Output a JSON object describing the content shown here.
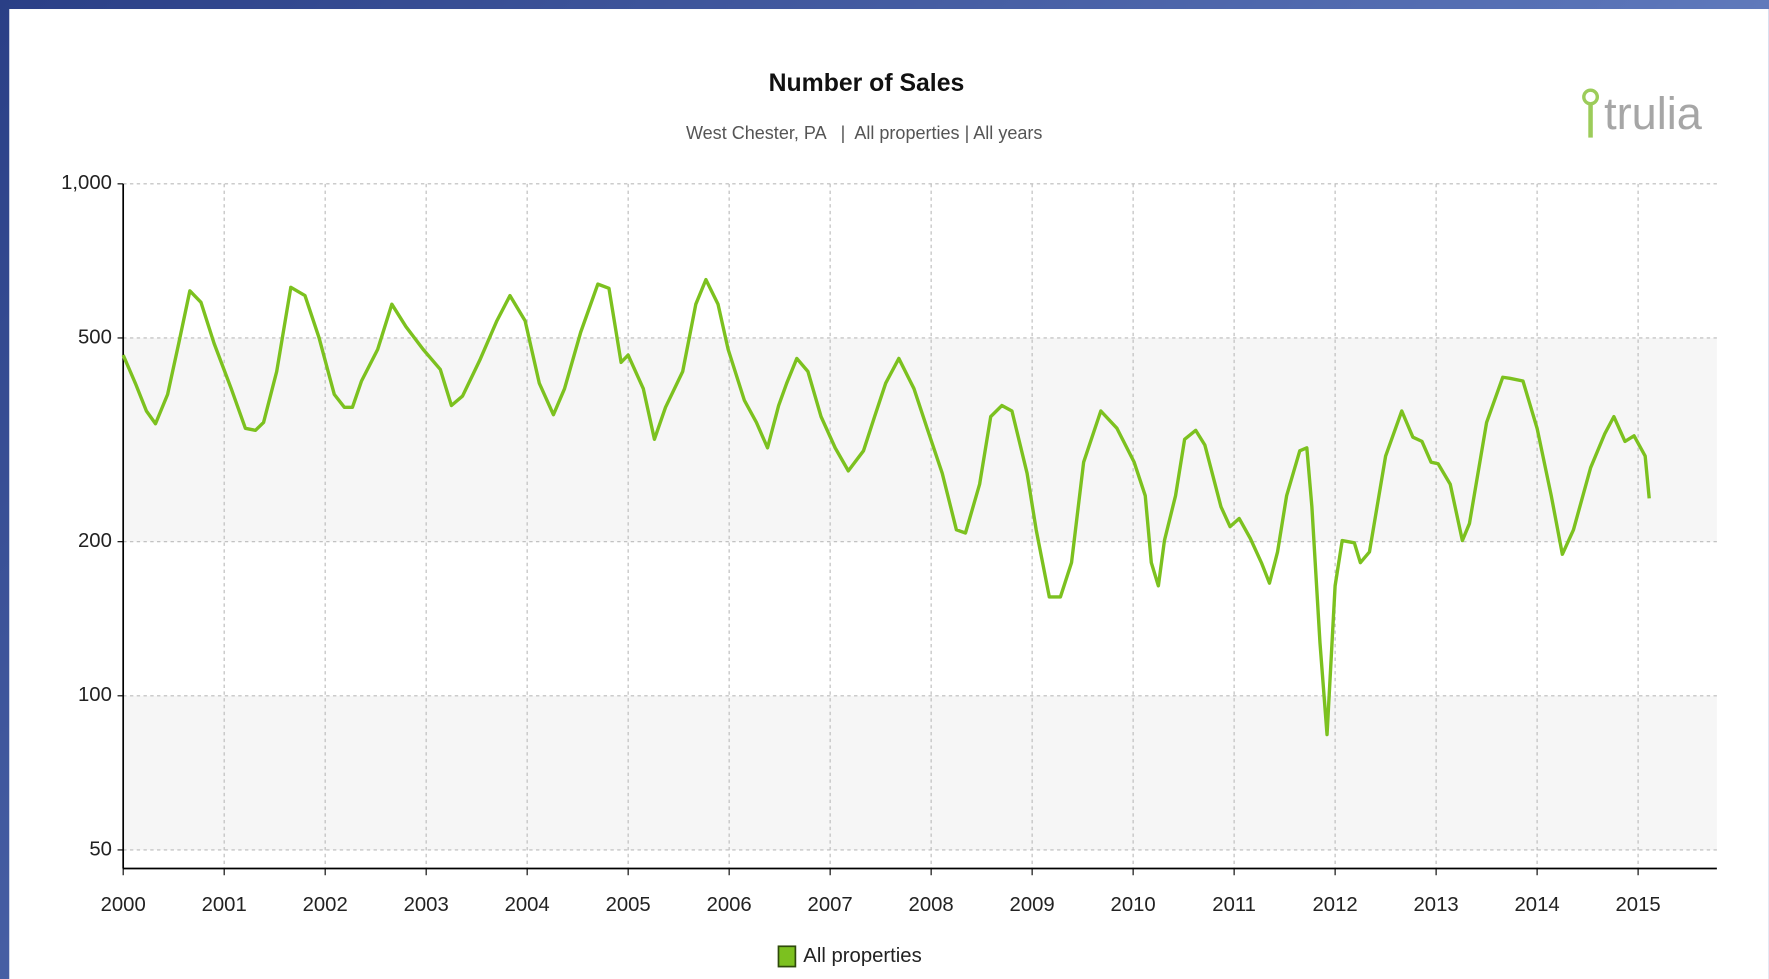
{
  "chart_data": {
    "type": "line",
    "title": "Number of Sales",
    "subtitle": "West Chester, PA   |  All properties | All years",
    "logo": "trulia",
    "log_scale": true,
    "grid": true,
    "legend": "bottom",
    "xlim": [
      2000,
      2015.78
    ],
    "xticks": [
      2000,
      2001,
      2002,
      2003,
      2004,
      2005,
      2006,
      2007,
      2008,
      2009,
      2010,
      2011,
      2012,
      2013,
      2014,
      2015
    ],
    "ylim": [
      46,
      1000
    ],
    "yticks": [
      50,
      100,
      200,
      500,
      {
        "value": 1000,
        "label": "1,000"
      }
    ],
    "x": [
      2000.0,
      2000.12,
      2000.23,
      2000.32,
      2000.44,
      2000.55,
      2000.66,
      2000.77,
      2000.9,
      2001.07,
      2001.21,
      2001.31,
      2001.39,
      2001.52,
      2001.66,
      2001.8,
      2001.94,
      2002.09,
      2002.19,
      2002.27,
      2002.36,
      2002.52,
      2002.66,
      2002.8,
      2002.97,
      2003.14,
      2003.25,
      2003.36,
      2003.53,
      2003.7,
      2003.83,
      2003.98,
      2004.12,
      2004.26,
      2004.37,
      2004.53,
      2004.7,
      2004.81,
      2004.93,
      2005.0,
      2005.15,
      2005.26,
      2005.37,
      2005.54,
      2005.67,
      2005.77,
      2005.89,
      2005.99,
      2006.15,
      2006.27,
      2006.38,
      2006.49,
      2006.57,
      2006.67,
      2006.78,
      2006.91,
      2007.05,
      2007.18,
      2007.33,
      2007.44,
      2007.55,
      2007.68,
      2007.83,
      2007.96,
      2008.11,
      2008.25,
      2008.34,
      2008.48,
      2008.59,
      2008.7,
      2008.8,
      2008.95,
      2009.04,
      2009.17,
      2009.28,
      2009.39,
      2009.51,
      2009.68,
      2009.84,
      2010.01,
      2010.12,
      2010.18,
      2010.25,
      2010.31,
      2010.42,
      2010.51,
      2010.62,
      2010.71,
      2010.87,
      2010.96,
      2011.05,
      2011.16,
      2011.27,
      2011.35,
      2011.43,
      2011.52,
      2011.65,
      2011.72,
      2011.77,
      2011.85,
      2011.92,
      2012.0,
      2012.07,
      2012.19,
      2012.25,
      2012.34,
      2012.5,
      2012.66,
      2012.77,
      2012.86,
      2012.95,
      2013.02,
      2013.14,
      2013.26,
      2013.33,
      2013.5,
      2013.66,
      2013.73,
      2013.86,
      2014.0,
      2014.14,
      2014.25,
      2014.36,
      2014.53,
      2014.67,
      2014.76,
      2014.87,
      2014.96,
      2015.07,
      2015.11
    ],
    "series": [
      {
        "name": "All properties",
        "color": "#7cc11f",
        "values": [
          463,
          408,
          360,
          340,
          388,
          488,
          618,
          587,
          488,
          398,
          333,
          330,
          342,
          430,
          628,
          605,
          500,
          388,
          366,
          366,
          412,
          475,
          582,
          526,
          475,
          434,
          369,
          385,
          452,
          540,
          605,
          540,
          408,
          354,
          398,
          513,
          637,
          625,
          448,
          463,
          398,
          317,
          366,
          430,
          582,
          650,
          582,
          475,
          378,
          342,
          305,
          369,
          408,
          456,
          430,
          351,
          305,
          275,
          301,
          351,
          408,
          456,
          398,
          333,
          272,
          211,
          208,
          259,
          351,
          369,
          360,
          272,
          211,
          156,
          156,
          182,
          286,
          360,
          333,
          286,
          246,
          182,
          164,
          201,
          246,
          317,
          330,
          309,
          234,
          214,
          222,
          203,
          182,
          166,
          191,
          246,
          301,
          305,
          234,
          127,
          84,
          164,
          201,
          199,
          182,
          191,
          294,
          360,
          320,
          314,
          286,
          284,
          259,
          201,
          217,
          342,
          419,
          417,
          412,
          333,
          246,
          189,
          211,
          279,
          325,
          351,
          314,
          322,
          294,
          243
        ]
      }
    ]
  }
}
